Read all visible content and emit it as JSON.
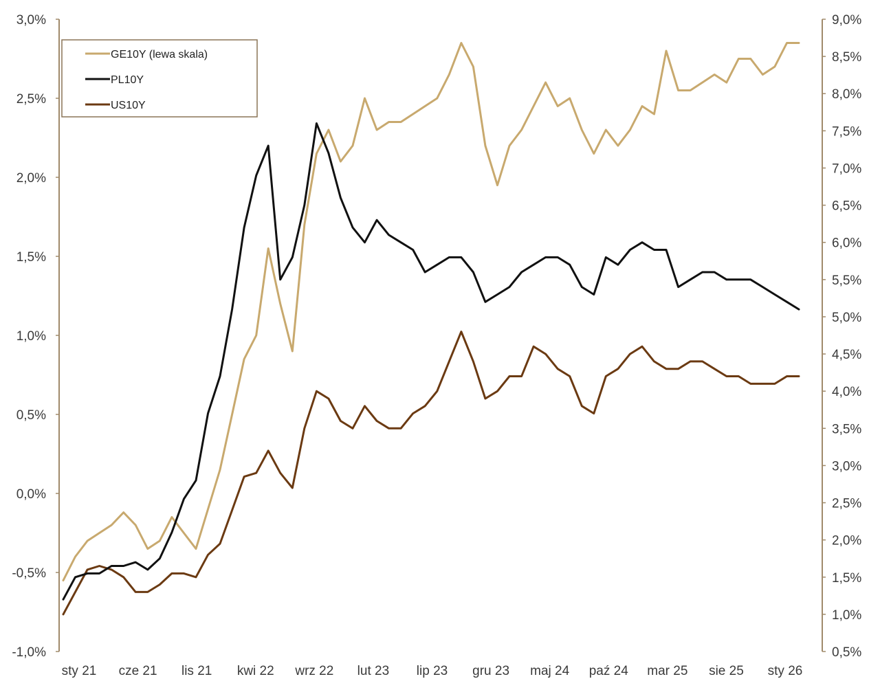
{
  "chart_data": {
    "type": "line",
    "title": "",
    "xlabel": "",
    "ylabel": "",
    "x_tick_labels": [
      "sty 21",
      "cze 21",
      "lis 21",
      "kwi 22",
      "wrz 22",
      "lut 23",
      "lip 23",
      "gru 23",
      "maj 24",
      "paź 24",
      "mar 25",
      "sie 25",
      "sty 26"
    ],
    "left_axis": {
      "min": -1.0,
      "max": 3.0,
      "tick_labels": [
        "-1,0%",
        "-0,5%",
        "0,0%",
        "0,5%",
        "1,0%",
        "1,5%",
        "2,0%",
        "2,5%",
        "3,0%"
      ]
    },
    "right_axis": {
      "min": 0.5,
      "max": 9.0,
      "tick_labels": [
        "0,5%",
        "1,0%",
        "1,5%",
        "2,0%",
        "2,5%",
        "3,0%",
        "3,5%",
        "4,0%",
        "4,5%",
        "5,0%",
        "5,5%",
        "6,0%",
        "6,5%",
        "7,0%",
        "7,5%",
        "8,0%",
        "8,5%",
        "9,0%"
      ]
    },
    "grid": false,
    "legend_position": "top-left",
    "x": [
      "2021-01",
      "2021-02",
      "2021-03",
      "2021-04",
      "2021-05",
      "2021-06",
      "2021-07",
      "2021-08",
      "2021-09",
      "2021-10",
      "2021-11",
      "2021-12",
      "2022-01",
      "2022-02",
      "2022-03",
      "2022-04",
      "2022-05",
      "2022-06",
      "2022-07",
      "2022-08",
      "2022-09",
      "2022-10",
      "2022-11",
      "2022-12",
      "2023-01",
      "2023-02",
      "2023-03",
      "2023-04",
      "2023-05",
      "2023-06",
      "2023-07",
      "2023-08",
      "2023-09",
      "2023-10",
      "2023-11",
      "2023-12",
      "2024-01",
      "2024-02",
      "2024-03",
      "2024-04",
      "2024-05",
      "2024-06",
      "2024-07",
      "2024-08",
      "2024-09",
      "2024-10",
      "2024-11",
      "2024-12",
      "2025-01",
      "2025-02",
      "2025-03",
      "2025-04",
      "2025-05",
      "2025-06",
      "2025-07",
      "2025-08",
      "2025-09",
      "2025-10",
      "2025-11",
      "2025-12",
      "2026-01",
      "2026-02"
    ],
    "series": [
      {
        "name": "GE10Y (lewa skala)",
        "axis": "left",
        "color": "#c8a96e",
        "values": [
          -0.55,
          -0.4,
          -0.3,
          -0.25,
          -0.2,
          -0.12,
          -0.2,
          -0.35,
          -0.3,
          -0.15,
          -0.25,
          -0.35,
          -0.1,
          0.15,
          0.5,
          0.85,
          1.0,
          1.55,
          1.2,
          0.9,
          1.7,
          2.15,
          2.3,
          2.1,
          2.2,
          2.5,
          2.3,
          2.35,
          2.35,
          2.4,
          2.45,
          2.5,
          2.65,
          2.85,
          2.7,
          2.2,
          1.95,
          2.2,
          2.3,
          2.45,
          2.6,
          2.45,
          2.5,
          2.3,
          2.15,
          2.3,
          2.2,
          2.3,
          2.45,
          2.4,
          2.8,
          2.55,
          2.55,
          2.6,
          2.65,
          2.6,
          2.75,
          2.75,
          2.65,
          2.7,
          2.85,
          2.85
        ]
      },
      {
        "name": "PL10Y",
        "axis": "right",
        "color": "#111111",
        "values": [
          1.2,
          1.5,
          1.55,
          1.55,
          1.65,
          1.65,
          1.7,
          1.6,
          1.75,
          2.1,
          2.55,
          2.8,
          3.7,
          4.2,
          5.1,
          6.2,
          6.9,
          7.3,
          5.5,
          5.8,
          6.5,
          7.6,
          7.2,
          6.6,
          6.2,
          6.0,
          6.3,
          6.1,
          6.0,
          5.9,
          5.6,
          5.7,
          5.8,
          5.8,
          5.6,
          5.2,
          5.3,
          5.4,
          5.6,
          5.7,
          5.8,
          5.8,
          5.7,
          5.4,
          5.3,
          5.8,
          5.7,
          5.9,
          6.0,
          5.9,
          5.9,
          5.4,
          5.5,
          5.6,
          5.6,
          5.5,
          5.5,
          5.5,
          5.4,
          5.3,
          5.2,
          5.1
        ]
      },
      {
        "name": "US10Y",
        "axis": "right",
        "color": "#6b3a12",
        "values": [
          1.0,
          1.3,
          1.6,
          1.65,
          1.6,
          1.5,
          1.3,
          1.3,
          1.4,
          1.55,
          1.55,
          1.5,
          1.8,
          1.95,
          2.4,
          2.85,
          2.9,
          3.2,
          2.9,
          2.7,
          3.5,
          4.0,
          3.9,
          3.6,
          3.5,
          3.8,
          3.6,
          3.5,
          3.5,
          3.7,
          3.8,
          4.0,
          4.4,
          4.8,
          4.4,
          3.9,
          4.0,
          4.2,
          4.2,
          4.6,
          4.5,
          4.3,
          4.2,
          3.8,
          3.7,
          4.2,
          4.3,
          4.5,
          4.6,
          4.4,
          4.3,
          4.3,
          4.4,
          4.4,
          4.3,
          4.2,
          4.2,
          4.1,
          4.1,
          4.1,
          4.2,
          4.2
        ]
      }
    ]
  }
}
